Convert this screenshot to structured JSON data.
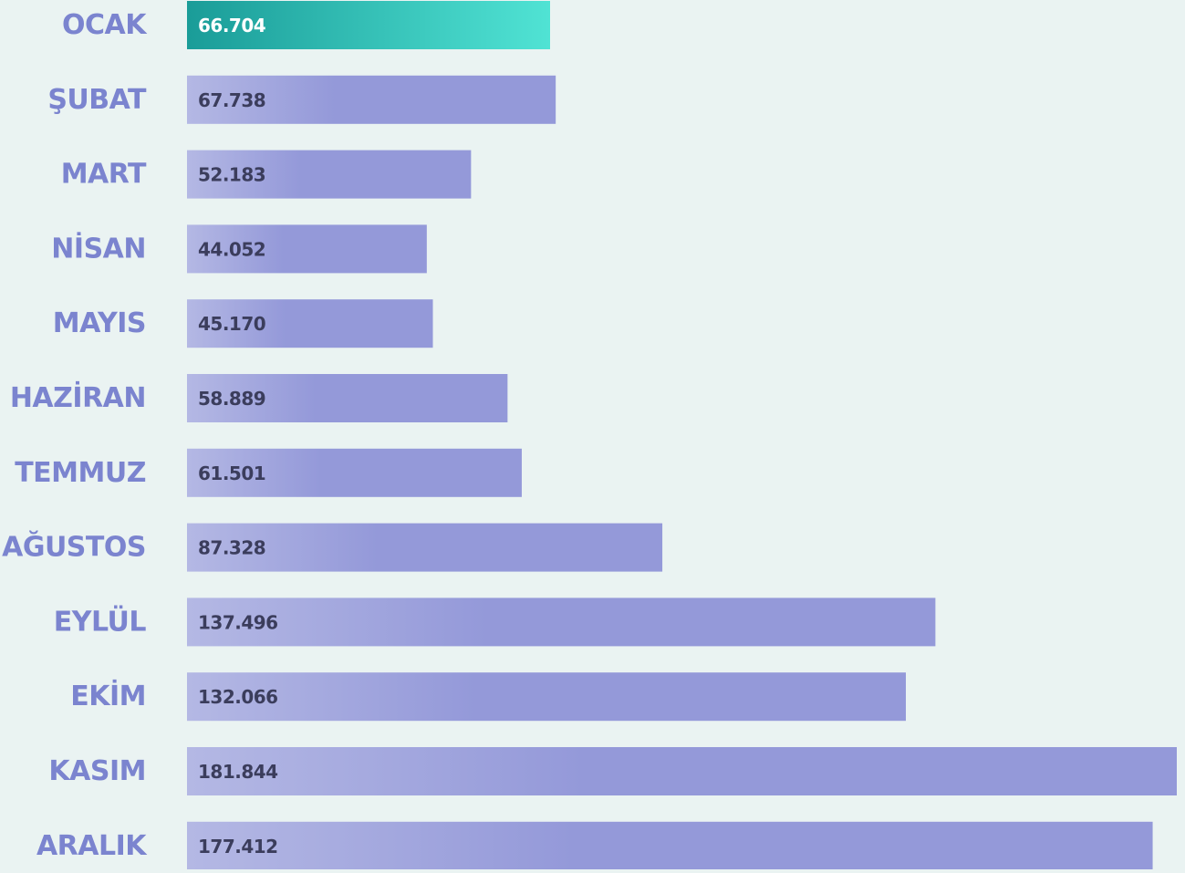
{
  "chart_data": {
    "type": "bar",
    "orientation": "horizontal",
    "categories": [
      "OCAK",
      "ŞUBAT",
      "MART",
      "NİSAN",
      "MAYIS",
      "HAZİRAN",
      "TEMMUZ",
      "AĞUSTOS",
      "EYLÜL",
      "EKİM",
      "KASIM",
      "ARALIK"
    ],
    "values": [
      66704,
      67738,
      52183,
      44052,
      45170,
      58889,
      61501,
      87328,
      137496,
      132066,
      181844,
      177412
    ],
    "value_labels": [
      "66.704",
      "67.738",
      "52.183",
      "44.052",
      "45.170",
      "58.889",
      "61.501",
      "87.328",
      "137.496",
      "132.066",
      "181.844",
      "177.412"
    ],
    "colors": [
      "#1a9c98",
      "#9499d9",
      "#9499d9",
      "#9499d9",
      "#9499d9",
      "#9499d9",
      "#9499d9",
      "#9499d9",
      "#9499d9",
      "#9499d9",
      "#9499d9",
      "#9499d9"
    ]
  }
}
